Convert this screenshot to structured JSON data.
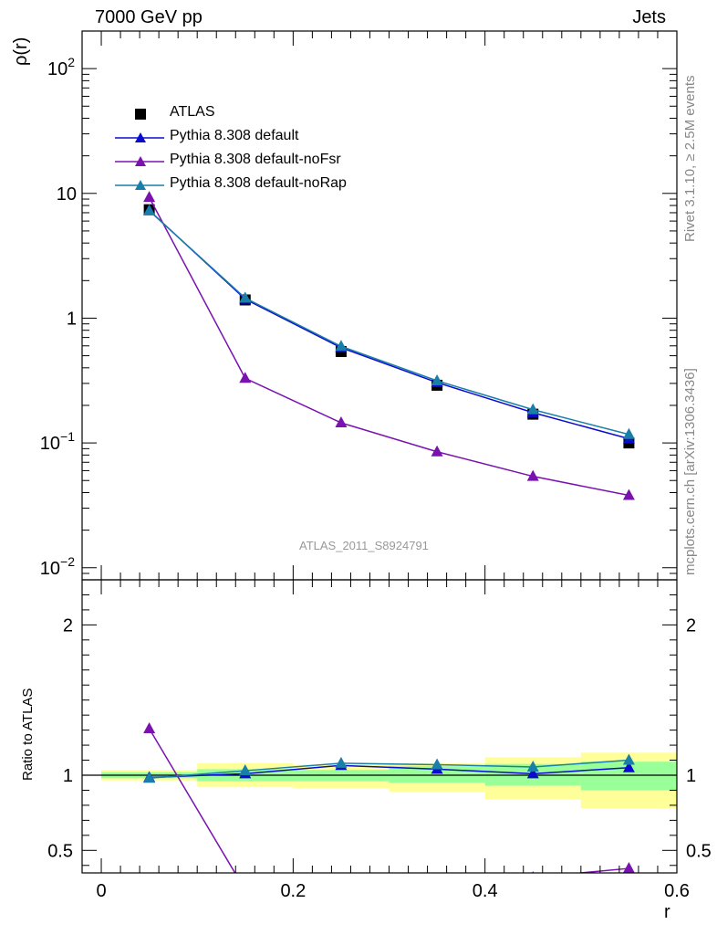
{
  "header": {
    "left": "7000 GeV pp",
    "right": "Jets"
  },
  "side_labels": {
    "top": "Rivet 3.1.10, ≥ 2.5M events",
    "bottom": "mcplots.cern.ch [arXiv:1306.3436]"
  },
  "watermark": "ATLAS_2011_S8924791",
  "colors": {
    "data": "#000000",
    "default": "#0b0bd0",
    "noFsr": "#7a12b0",
    "noRap": "#1a7fa8",
    "band_outer": "#ffff99",
    "band_inner": "#99ff99"
  },
  "chart_data": [
    {
      "type": "scatter",
      "ylabel": "ρ(r)",
      "yscale": "log",
      "ylim": [
        0.008,
        200
      ],
      "xlim": [
        -0.02,
        0.6
      ],
      "yticks": [
        {
          "value": 100,
          "base": "10",
          "exp": "2"
        },
        {
          "value": 10,
          "base": "10",
          "exp": ""
        },
        {
          "value": 1,
          "base": "1",
          "exp": ""
        },
        {
          "value": 0.1,
          "base": "10",
          "exp": "−1"
        },
        {
          "value": 0.01,
          "base": "10",
          "exp": "−2"
        }
      ],
      "legend_position": "top-left",
      "x": [
        0.05,
        0.15,
        0.25,
        0.35,
        0.45,
        0.55
      ],
      "x_edges": [
        0.0,
        0.1,
        0.2,
        0.3,
        0.4,
        0.5,
        0.6
      ],
      "series": [
        {
          "name": "ATLAS",
          "key": "data",
          "values": [
            7.4,
            1.4,
            0.54,
            0.29,
            0.17,
            0.1
          ]
        },
        {
          "name": "Pythia 8.308 default",
          "key": "default",
          "values": [
            7.3,
            1.42,
            0.58,
            0.305,
            0.175,
            0.108
          ]
        },
        {
          "name": "Pythia 8.308 default-noFsr",
          "key": "noFsr",
          "values": [
            9.3,
            0.33,
            0.145,
            0.085,
            0.054,
            0.038
          ]
        },
        {
          "name": "Pythia 8.308 default-noRap",
          "key": "noRap",
          "values": [
            7.25,
            1.45,
            0.595,
            0.315,
            0.185,
            0.117
          ]
        }
      ]
    },
    {
      "type": "line",
      "ylabel": "Ratio to ATLAS",
      "xlabel": "r",
      "ylim": [
        0.35,
        2.3
      ],
      "xlim": [
        -0.02,
        0.6
      ],
      "yticks": [
        {
          "value": 0.5,
          "label": "0.5"
        },
        {
          "value": 1,
          "label": "1"
        },
        {
          "value": 2,
          "label": "2"
        }
      ],
      "xticks": [
        {
          "value": 0,
          "label": "0"
        },
        {
          "value": 0.2,
          "label": "0.2"
        },
        {
          "value": 0.4,
          "label": "0.4"
        },
        {
          "value": 0.6,
          "label": "0.6"
        }
      ],
      "x": [
        0.05,
        0.15,
        0.25,
        0.35,
        0.45,
        0.55
      ],
      "x_edges": [
        0.0,
        0.1,
        0.2,
        0.3,
        0.4,
        0.5,
        0.6
      ],
      "band_outer": [
        [
          0.965,
          1.035
        ],
        [
          0.92,
          1.08
        ],
        [
          0.915,
          1.07
        ],
        [
          0.89,
          1.08
        ],
        [
          0.84,
          1.12
        ],
        [
          0.78,
          1.15
        ]
      ],
      "band_inner": [
        [
          0.98,
          1.02
        ],
        [
          0.96,
          1.04
        ],
        [
          0.96,
          1.035
        ],
        [
          0.95,
          1.06
        ],
        [
          0.93,
          1.075
        ],
        [
          0.9,
          1.09
        ]
      ],
      "series": [
        {
          "name": "Pythia 8.308 default",
          "key": "default",
          "values": [
            0.985,
            1.01,
            1.065,
            1.04,
            1.01,
            1.05
          ]
        },
        {
          "name": "Pythia 8.308 default-noFsr",
          "key": "noFsr",
          "values": [
            1.31,
            0.236,
            0.27,
            0.29,
            0.32,
            0.38
          ]
        },
        {
          "name": "Pythia 8.308 default-noRap",
          "key": "noRap",
          "values": [
            0.98,
            1.03,
            1.08,
            1.07,
            1.055,
            1.1
          ]
        }
      ]
    }
  ]
}
